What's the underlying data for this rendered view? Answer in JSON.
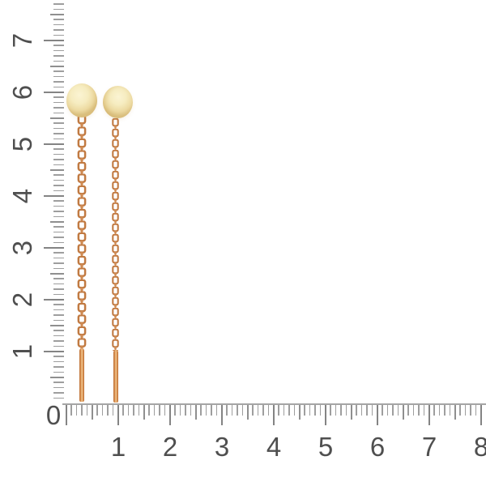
{
  "canvas": {
    "background": "#ffffff"
  },
  "rulers": {
    "origin_label": "0",
    "vertical": {
      "labels": [
        "1",
        "2",
        "3",
        "4",
        "5",
        "6",
        "7"
      ],
      "min": 0,
      "max": 7.7,
      "minor_step": 0.1,
      "medium_step": 0.5,
      "major_step": 1
    },
    "horizontal": {
      "labels": [
        "1",
        "2",
        "3",
        "4",
        "5",
        "6",
        "7",
        "8"
      ],
      "min": 0,
      "max": 8.0,
      "minor_step": 0.1,
      "medium_step": 0.5,
      "major_step": 1
    },
    "colors": {
      "baseline": "#a5a5a5",
      "tick_major": "#848484",
      "tick_medium": "#8f8f8f",
      "tick_minor": "#9e9e9e",
      "label": "#4f4f4f"
    }
  },
  "product": {
    "items": [
      {
        "name": "gold-disc-threader-earring-left"
      },
      {
        "name": "gold-disc-threader-earring-right"
      }
    ],
    "colors": {
      "disc_center": "#fbf4d3",
      "disc_mid": "#f6ecc0",
      "disc_edge": "#ecd9a0",
      "disc_rim": "#ddc485",
      "chain_stroke": "#c17a42",
      "chain_fill": "#cf8a52",
      "post_dark": "#b96d31",
      "post_mid": "#d88f52",
      "post_light": "#f2c88f"
    }
  }
}
